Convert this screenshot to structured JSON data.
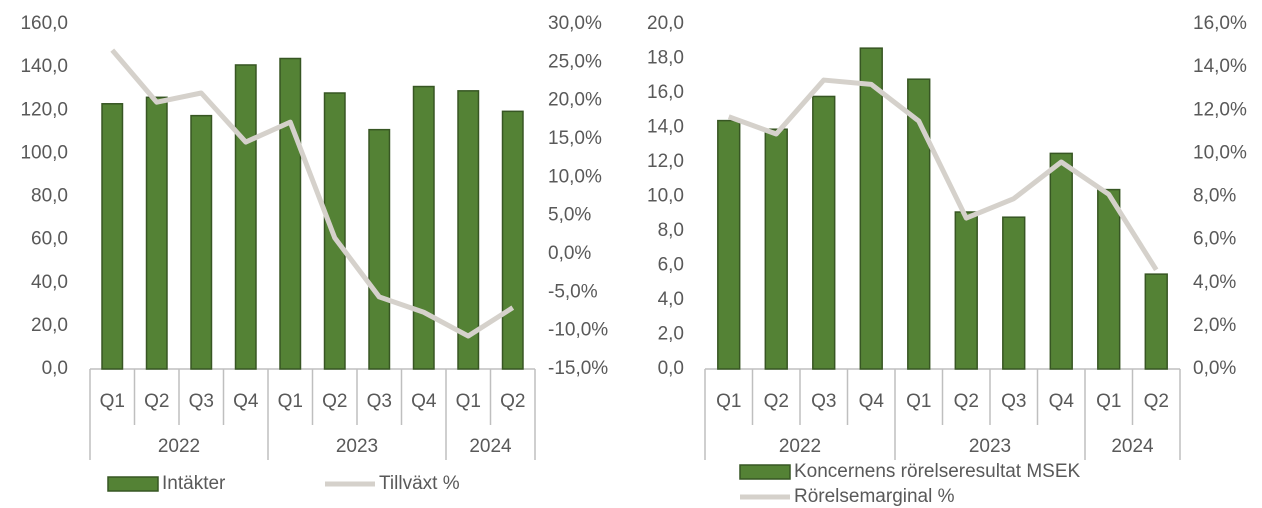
{
  "chart_data": [
    {
      "type": "bar",
      "groups": [
        {
          "label": "2022",
          "categories": [
            "Q1",
            "Q2",
            "Q3",
            "Q4"
          ]
        },
        {
          "label": "2023",
          "categories": [
            "Q1",
            "Q2",
            "Q3",
            "Q4"
          ]
        },
        {
          "label": "2024",
          "categories": [
            "Q1",
            "Q2"
          ]
        }
      ],
      "series": [
        {
          "name": "Intäkter",
          "type": "bar",
          "color": "#548235",
          "values": [
            123,
            126,
            117.5,
            141,
            144,
            128,
            111,
            131,
            129,
            119.5
          ]
        },
        {
          "name": "Tillväxt %",
          "type": "line",
          "axis": "y2",
          "color": "#d5d1cb",
          "values": [
            26.6,
            19.8,
            21.0,
            14.6,
            17.2,
            2.1,
            -5.6,
            -7.6,
            -10.7,
            -7.0
          ]
        }
      ],
      "ylim": [
        0,
        160
      ],
      "yticks": [
        {
          "value": 0,
          "label": "0,0"
        },
        {
          "value": 20,
          "label": "20,0"
        },
        {
          "value": 40,
          "label": "40,0"
        },
        {
          "value": 60,
          "label": "60,0"
        },
        {
          "value": 80,
          "label": "80,0"
        },
        {
          "value": 100,
          "label": "100,0"
        },
        {
          "value": 120,
          "label": "120,0"
        },
        {
          "value": 140,
          "label": "140,0"
        },
        {
          "value": 160,
          "label": "160,0"
        }
      ],
      "y2lim": [
        -15,
        30
      ],
      "y2ticks": [
        {
          "value": -15,
          "label": "-15,0%"
        },
        {
          "value": -10,
          "label": "-10,0%"
        },
        {
          "value": -5,
          "label": "-5,0%"
        },
        {
          "value": 0,
          "label": "0,0%"
        },
        {
          "value": 5,
          "label": "5,0%"
        },
        {
          "value": 10,
          "label": "10,0%"
        },
        {
          "value": 15,
          "label": "15,0%"
        },
        {
          "value": 20,
          "label": "20,0%"
        },
        {
          "value": 25,
          "label": "25,0%"
        },
        {
          "value": 30,
          "label": "30,0%"
        }
      ]
    },
    {
      "type": "bar",
      "groups": [
        {
          "label": "2022",
          "categories": [
            "Q1",
            "Q2",
            "Q3",
            "Q4"
          ]
        },
        {
          "label": "2023",
          "categories": [
            "Q1",
            "Q2",
            "Q3",
            "Q4"
          ]
        },
        {
          "label": "2024",
          "categories": [
            "Q1",
            "Q2"
          ]
        }
      ],
      "series": [
        {
          "name": "Koncernens rörelseresultat MSEK",
          "type": "bar",
          "color": "#548235",
          "values": [
            14.4,
            13.9,
            15.8,
            18.6,
            16.8,
            9.1,
            8.8,
            12.5,
            10.4,
            5.5
          ]
        },
        {
          "name": "Rörelsemarginal %",
          "type": "line",
          "axis": "y2",
          "color": "#d5d1cb",
          "values": [
            11.7,
            10.9,
            13.4,
            13.2,
            11.5,
            7.0,
            7.9,
            9.6,
            8.1,
            4.6
          ]
        }
      ],
      "ylim": [
        0,
        20
      ],
      "yticks": [
        {
          "value": 0,
          "label": "0,0"
        },
        {
          "value": 2,
          "label": "2,0"
        },
        {
          "value": 4,
          "label": "4,0"
        },
        {
          "value": 6,
          "label": "6,0"
        },
        {
          "value": 8,
          "label": "8,0"
        },
        {
          "value": 10,
          "label": "10,0"
        },
        {
          "value": 12,
          "label": "12,0"
        },
        {
          "value": 14,
          "label": "14,0"
        },
        {
          "value": 16,
          "label": "16,0"
        },
        {
          "value": 18,
          "label": "18,0"
        },
        {
          "value": 20,
          "label": "20,0"
        }
      ],
      "y2lim": [
        0,
        16
      ],
      "y2ticks": [
        {
          "value": 0,
          "label": "0,0%"
        },
        {
          "value": 2,
          "label": "2,0%"
        },
        {
          "value": 4,
          "label": "4,0%"
        },
        {
          "value": 6,
          "label": "6,0%"
        },
        {
          "value": 8,
          "label": "8,0%"
        },
        {
          "value": 10,
          "label": "10,0%"
        },
        {
          "value": 12,
          "label": "12,0%"
        },
        {
          "value": 14,
          "label": "14,0%"
        },
        {
          "value": 16,
          "label": "16,0%"
        }
      ]
    }
  ]
}
